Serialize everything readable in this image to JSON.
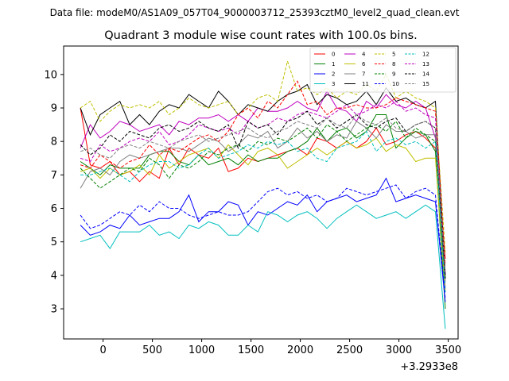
{
  "figure": {
    "suptitle": "Data file: modeM0/AS1A09_057T04_9000003712_25393cztM0_level2_quad_clean.evt"
  },
  "chart_data": {
    "type": "line",
    "title": "Quadrant 3 module wise count rates with 100.0s bins.",
    "xlabel": "",
    "ylabel": "",
    "x_offset_label": "+3.2933e8",
    "xlim": [
      -400,
      3600
    ],
    "ylim": [
      2.1,
      10.85
    ],
    "x_ticks": [
      0,
      500,
      1000,
      1500,
      2000,
      2500,
      3000,
      3500
    ],
    "y_ticks": [
      3,
      4,
      5,
      6,
      7,
      8,
      9,
      10
    ],
    "x": [
      -230,
      -130,
      -30,
      70,
      170,
      270,
      370,
      470,
      570,
      670,
      770,
      870,
      970,
      1070,
      1170,
      1270,
      1370,
      1470,
      1570,
      1670,
      1770,
      1870,
      1970,
      2070,
      2170,
      2270,
      2370,
      2470,
      2570,
      2670,
      2770,
      2870,
      2970,
      3070,
      3170,
      3270,
      3370,
      3470
    ],
    "legend": {
      "location": "top-right",
      "columns": 4
    },
    "series": [
      {
        "name": "0",
        "color": "#ff0000",
        "dash": "solid",
        "values": [
          9.0,
          7.3,
          7.2,
          7.4,
          7.0,
          7.1,
          6.8,
          7.1,
          6.9,
          7.8,
          7.3,
          7.8,
          7.6,
          7.5,
          7.8,
          7.1,
          7.2,
          7.5,
          7.4,
          7.5,
          7.6,
          7.7,
          7.8,
          7.6,
          8.1,
          8.0,
          7.8,
          8.0,
          7.8,
          8.0,
          8.4,
          7.9,
          8.0,
          8.2,
          8.3,
          8.1,
          7.8,
          4.5
        ]
      },
      {
        "name": "1",
        "color": "#008000",
        "dash": "solid",
        "values": [
          7.4,
          7.2,
          7.0,
          7.3,
          7.2,
          7.2,
          7.2,
          7.6,
          7.7,
          7.7,
          7.4,
          7.3,
          7.6,
          7.3,
          7.4,
          7.5,
          7.3,
          7.6,
          7.4,
          7.5,
          7.5,
          7.7,
          7.8,
          8.0,
          8.4,
          8.0,
          8.3,
          8.4,
          8.1,
          8.3,
          8.8,
          8.8,
          7.8,
          8.1,
          8.3,
          8.2,
          7.7,
          3.0
        ]
      },
      {
        "name": "2",
        "color": "#0000ff",
        "dash": "solid",
        "values": [
          5.5,
          5.2,
          5.3,
          5.5,
          5.4,
          5.8,
          5.5,
          5.6,
          5.7,
          5.7,
          5.9,
          6.4,
          5.6,
          5.9,
          5.9,
          6.2,
          6.1,
          5.5,
          5.9,
          5.8,
          6.0,
          6.2,
          6.1,
          6.4,
          5.9,
          6.2,
          6.3,
          6.4,
          6.2,
          6.3,
          6.4,
          6.9,
          6.2,
          6.3,
          6.4,
          6.3,
          6.2,
          3.2
        ]
      },
      {
        "name": "3",
        "color": "#00bfbf",
        "dash": "solid",
        "values": [
          5.0,
          5.1,
          5.2,
          4.8,
          5.3,
          5.3,
          5.3,
          5.5,
          5.2,
          5.3,
          5.1,
          5.5,
          5.4,
          5.6,
          5.5,
          5.2,
          5.2,
          5.5,
          5.3,
          5.9,
          5.8,
          5.6,
          5.8,
          5.9,
          5.7,
          5.4,
          5.7,
          5.9,
          6.1,
          5.9,
          5.7,
          5.8,
          5.9,
          5.7,
          5.9,
          6.1,
          5.9,
          2.4
        ]
      },
      {
        "name": "4",
        "color": "#bf00bf",
        "dash": "solid",
        "values": [
          7.8,
          8.5,
          8.1,
          8.3,
          8.6,
          8.5,
          8.3,
          8.4,
          8.5,
          8.2,
          8.6,
          8.5,
          8.7,
          8.7,
          8.8,
          8.6,
          8.8,
          8.6,
          9.0,
          8.9,
          8.9,
          9.0,
          9.2,
          9.0,
          8.9,
          9.5,
          9.0,
          8.9,
          8.6,
          9.2,
          9.0,
          9.4,
          9.1,
          9.0,
          9.2,
          9.0,
          8.1,
          3.6
        ]
      },
      {
        "name": "6",
        "color": "#bfbf00",
        "dash": "solid",
        "values": [
          7.1,
          7.2,
          6.9,
          7.2,
          7.0,
          7.1,
          7.3,
          7.0,
          7.6,
          7.2,
          7.4,
          7.6,
          7.7,
          7.8,
          7.5,
          7.9,
          7.6,
          7.3,
          7.7,
          7.8,
          7.6,
          7.2,
          7.4,
          7.6,
          7.8,
          7.6,
          7.8,
          8.0,
          7.8,
          7.9,
          8.1,
          7.7,
          7.9,
          7.8,
          7.4,
          7.5,
          7.5,
          3.5
        ]
      },
      {
        "name": "7",
        "color": "#808080",
        "dash": "solid",
        "values": [
          6.6,
          7.1,
          7.2,
          7.0,
          7.4,
          7.6,
          7.5,
          7.6,
          7.7,
          7.8,
          7.8,
          7.7,
          7.9,
          8.1,
          8.0,
          7.7,
          7.9,
          8.2,
          8.1,
          8.3,
          7.8,
          8.0,
          8.4,
          8.1,
          8.3,
          8.0,
          8.2,
          8.1,
          8.6,
          8.4,
          8.1,
          8.5,
          8.3,
          8.3,
          8.1,
          8.2,
          8.2,
          3.8
        ]
      },
      {
        "name": "11",
        "color": "#000000",
        "dash": "solid",
        "values": [
          9.0,
          8.2,
          8.8,
          9.0,
          9.2,
          8.5,
          8.8,
          8.5,
          8.9,
          9.1,
          9.0,
          9.4,
          9.2,
          9.0,
          9.5,
          9.2,
          8.8,
          9.1,
          9.0,
          8.9,
          9.2,
          9.4,
          9.5,
          9.7,
          9.1,
          9.4,
          9.3,
          9.1,
          9.2,
          9.5,
          9.1,
          9.6,
          9.2,
          9.3,
          9.1,
          9.0,
          9.2,
          4.0
        ]
      },
      {
        "name": "5",
        "color": "#bfbf00",
        "dash": "dashed",
        "values": [
          9.0,
          9.2,
          8.6,
          8.9,
          9.1,
          9.0,
          9.1,
          9.0,
          9.2,
          8.8,
          9.0,
          9.3,
          9.1,
          9.0,
          9.1,
          9.2,
          8.8,
          9.0,
          9.3,
          9.4,
          9.2,
          10.4,
          9.5,
          9.6,
          9.4,
          9.6,
          9.3,
          9.5,
          9.4,
          9.7,
          9.5,
          10.0,
          9.3,
          9.5,
          9.3,
          9.2,
          9.0,
          4.7
        ]
      },
      {
        "name": "8",
        "color": "#ff0000",
        "dash": "dashed",
        "values": [
          7.3,
          7.2,
          7.6,
          7.4,
          7.2,
          7.4,
          7.5,
          7.9,
          7.6,
          7.8,
          7.7,
          7.9,
          8.1,
          8.2,
          8.0,
          8.3,
          8.8,
          9.0,
          8.7,
          9.2,
          9.0,
          9.4,
          9.8,
          9.1,
          9.2,
          8.8,
          9.0,
          9.0,
          9.1,
          9.0,
          9.0,
          9.1,
          9.3,
          9.2,
          9.1,
          9.0,
          8.9,
          4.3
        ]
      },
      {
        "name": "9",
        "color": "#008000",
        "dash": "dashed",
        "values": [
          7.2,
          6.9,
          6.6,
          6.8,
          7.0,
          7.2,
          7.1,
          7.5,
          7.3,
          6.9,
          7.3,
          7.2,
          7.4,
          7.7,
          7.6,
          7.8,
          7.9,
          7.7,
          8.0,
          7.9,
          8.1,
          8.0,
          8.2,
          8.4,
          8.1,
          8.5,
          8.3,
          8.0,
          8.2,
          8.4,
          8.5,
          8.3,
          8.6,
          8.1,
          8.4,
          8.2,
          8.0,
          3.9
        ]
      },
      {
        "name": "10",
        "color": "#0000ff",
        "dash": "dashed",
        "values": [
          5.8,
          5.4,
          5.5,
          5.7,
          5.9,
          5.8,
          6.1,
          5.9,
          6.2,
          6.0,
          6.0,
          5.8,
          5.7,
          5.8,
          5.9,
          5.8,
          5.8,
          5.9,
          6.2,
          6.5,
          6.6,
          6.4,
          6.5,
          6.3,
          6.4,
          6.2,
          6.3,
          6.6,
          6.5,
          6.4,
          6.5,
          6.6,
          6.7,
          6.3,
          6.5,
          6.6,
          6.4,
          3.3
        ]
      },
      {
        "name": "12",
        "color": "#00bfbf",
        "dash": "dashed",
        "values": [
          7.0,
          7.0,
          7.1,
          7.2,
          7.0,
          6.8,
          7.1,
          7.3,
          7.4,
          7.4,
          7.2,
          7.3,
          7.6,
          7.8,
          7.5,
          7.6,
          7.7,
          7.9,
          7.8,
          8.0,
          7.9,
          8.0,
          7.7,
          7.8,
          7.5,
          7.4,
          7.8,
          7.9,
          8.0,
          8.3,
          7.7,
          8.0,
          8.1,
          7.9,
          8.0,
          7.8,
          8.0,
          3.5
        ]
      },
      {
        "name": "13",
        "color": "#bf00bf",
        "dash": "dashed",
        "values": [
          7.5,
          7.4,
          7.9,
          7.7,
          7.8,
          8.0,
          8.1,
          8.0,
          8.3,
          7.9,
          8.0,
          8.2,
          8.5,
          8.4,
          8.3,
          8.4,
          8.2,
          8.6,
          8.4,
          8.5,
          8.7,
          8.6,
          8.8,
          8.9,
          8.8,
          8.7,
          8.9,
          9.1,
          8.8,
          8.9,
          9.1,
          9.0,
          9.2,
          8.9,
          9.0,
          8.8,
          8.7,
          4.0
        ]
      },
      {
        "name": "14",
        "color": "#000000",
        "dash": "dashed",
        "values": [
          7.9,
          7.6,
          7.8,
          8.2,
          8.0,
          8.3,
          8.2,
          8.1,
          8.4,
          8.5,
          8.3,
          8.4,
          8.6,
          8.4,
          8.3,
          8.5,
          7.8,
          8.6,
          8.4,
          8.5,
          8.2,
          8.6,
          8.7,
          8.9,
          8.5,
          8.7,
          8.4,
          8.6,
          8.8,
          8.5,
          8.4,
          8.6,
          8.7,
          8.3,
          8.5,
          8.6,
          8.4,
          3.9
        ]
      },
      {
        "name": "15",
        "color": "#808080",
        "dash": "dashed",
        "values": [
          7.7,
          7.8,
          7.6,
          7.5,
          7.8,
          7.9,
          7.8,
          8.0,
          7.9,
          7.8,
          8.0,
          8.1,
          8.2,
          8.0,
          8.1,
          8.2,
          8.3,
          8.4,
          8.2,
          8.1,
          8.3,
          8.4,
          8.6,
          8.5,
          8.4,
          8.7,
          8.5,
          8.4,
          8.8,
          8.6,
          8.5,
          8.7,
          8.4,
          8.3,
          8.5,
          8.6,
          8.4,
          4.1
        ]
      }
    ]
  }
}
